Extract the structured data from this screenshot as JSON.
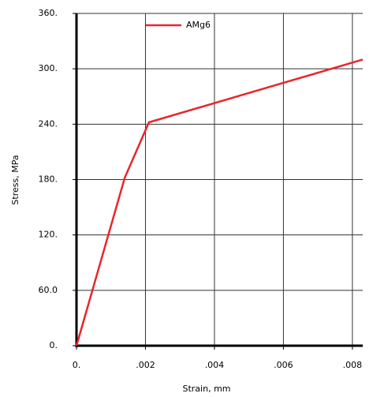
{
  "chart_data": {
    "type": "line",
    "x_label": "Strain, mm",
    "y_label": "Stress, MPa",
    "x": [
      0,
      0.0014,
      0.0021,
      0.0083
    ],
    "series": [
      {
        "name": "AMg6",
        "color": "#e8262b",
        "values": [
          0,
          182,
          242,
          310
        ]
      }
    ],
    "xlim": [
      0,
      0.0083
    ],
    "ylim": [
      0,
      360
    ],
    "xticks": [
      {
        "value": 0,
        "label": "0."
      },
      {
        "value": 0.002,
        "label": ".002"
      },
      {
        "value": 0.004,
        "label": ".004"
      },
      {
        "value": 0.006,
        "label": ".006"
      },
      {
        "value": 0.008,
        "label": ".008"
      }
    ],
    "yticks": [
      {
        "value": 0,
        "label": "0."
      },
      {
        "value": 60,
        "label": "60.0"
      },
      {
        "value": 120,
        "label": "120."
      },
      {
        "value": 180,
        "label": "180."
      },
      {
        "value": 240,
        "label": "240."
      },
      {
        "value": 300,
        "label": "300."
      },
      {
        "value": 360,
        "label": "360."
      }
    ],
    "grid": true
  }
}
